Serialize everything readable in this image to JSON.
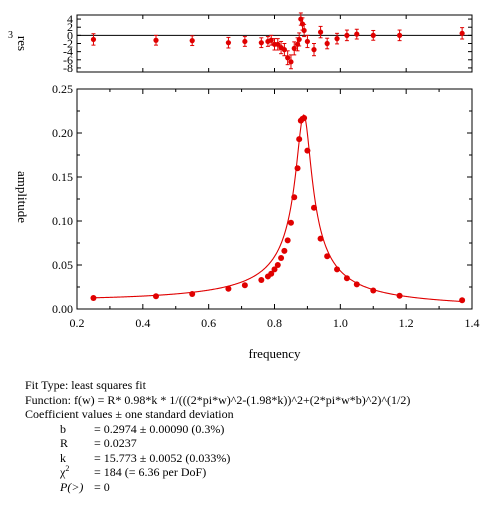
{
  "chart_data": [
    {
      "type": "scatter",
      "panel": "residuals",
      "ylabel": "res",
      "ylabel_prefix": "3",
      "ylim": [
        -9,
        5
      ],
      "xlim": [
        0.2,
        1.4
      ],
      "yticks": [
        4,
        2,
        0,
        -2,
        -4,
        -6,
        -8
      ],
      "ytick_labels": [
        "4",
        "2",
        "0",
        "-2",
        "-4",
        "-6",
        "-8"
      ],
      "zero_line": true,
      "x": [
        0.25,
        0.44,
        0.55,
        0.66,
        0.71,
        0.76,
        0.78,
        0.79,
        0.8,
        0.81,
        0.82,
        0.83,
        0.84,
        0.85,
        0.86,
        0.87,
        0.875,
        0.88,
        0.885,
        0.89,
        0.9,
        0.92,
        0.94,
        0.96,
        0.99,
        1.02,
        1.05,
        1.1,
        1.18,
        1.37
      ],
      "values": [
        -1.0,
        -1.2,
        -1.3,
        -1.8,
        -1.5,
        -1.8,
        -1.5,
        -1.2,
        -2.2,
        -2.2,
        -3.0,
        -3.5,
        -5.5,
        -6.5,
        -3.2,
        -2.2,
        -1.0,
        4.0,
        2.8,
        1.2,
        -1.5,
        -3.5,
        0.8,
        -2.0,
        -0.8,
        0.0,
        0.3,
        0.0,
        0.0,
        0.5
      ],
      "errors": [
        1.4,
        1.2,
        1.2,
        1.3,
        1.2,
        1.2,
        1.2,
        1.2,
        1.4,
        1.4,
        1.5,
        1.5,
        1.7,
        1.7,
        1.6,
        1.6,
        1.6,
        1.5,
        1.5,
        1.5,
        1.5,
        1.5,
        1.4,
        1.3,
        1.3,
        1.3,
        1.2,
        1.2,
        1.3,
        1.4
      ],
      "marker_color": "#e00000"
    },
    {
      "type": "scatter",
      "panel": "main",
      "xlabel": "frequency",
      "ylabel": "amplitude",
      "xlim": [
        0.2,
        1.4
      ],
      "ylim": [
        0.0,
        0.25
      ],
      "xticks": [
        0.2,
        0.4,
        0.6,
        0.8,
        1.0,
        1.2,
        1.4
      ],
      "xtick_labels": [
        "0.2",
        "0.4",
        "0.6",
        "0.8",
        "1.0",
        "1.2",
        "1.4"
      ],
      "yticks": [
        0.0,
        0.05,
        0.1,
        0.15,
        0.2,
        0.25
      ],
      "ytick_labels": [
        "0.00",
        "0.05",
        "0.10",
        "0.15",
        "0.20",
        "0.25"
      ],
      "x": [
        0.25,
        0.44,
        0.55,
        0.66,
        0.71,
        0.76,
        0.78,
        0.79,
        0.8,
        0.81,
        0.82,
        0.83,
        0.84,
        0.85,
        0.86,
        0.87,
        0.875,
        0.88,
        0.885,
        0.89,
        0.9,
        0.92,
        0.94,
        0.96,
        0.99,
        1.02,
        1.05,
        1.1,
        1.18,
        1.37
      ],
      "y": [
        0.0125,
        0.0145,
        0.017,
        0.023,
        0.027,
        0.033,
        0.037,
        0.04,
        0.045,
        0.05,
        0.058,
        0.066,
        0.078,
        0.098,
        0.127,
        0.16,
        0.193,
        0.214,
        0.216,
        0.217,
        0.18,
        0.115,
        0.08,
        0.06,
        0.045,
        0.035,
        0.028,
        0.021,
        0.015,
        0.01
      ],
      "fit_line": {
        "color": "#e00000",
        "params": {
          "R": 0.0237,
          "k": 15.773,
          "b": 0.2974
        }
      },
      "marker_color": "#e00000"
    }
  ],
  "fit_info": {
    "fit_type": "Fit Type: least squares fit",
    "function": "Function: f(w) = R* 0.98*k * 1/(((2*pi*w)^2-(1.98*k))^2+(2*pi*w*b)^2)^(1/2)",
    "coef_heading": "Coefficient values ± one standard deviation",
    "coefficients": [
      {
        "name": "b",
        "value": "= 0.2974 ± 0.00090  (0.3%)"
      },
      {
        "name": "R",
        "value": "= 0.0237"
      },
      {
        "name": "k",
        "value": "= 15.773 ± 0.0052  (0.033%)"
      }
    ],
    "chi_name": "χ",
    "chi_sup": "2",
    "chi_value": "= 184 (= 6.36 per DoF)",
    "p_name": "P(>)",
    "p_value": "= 0"
  }
}
